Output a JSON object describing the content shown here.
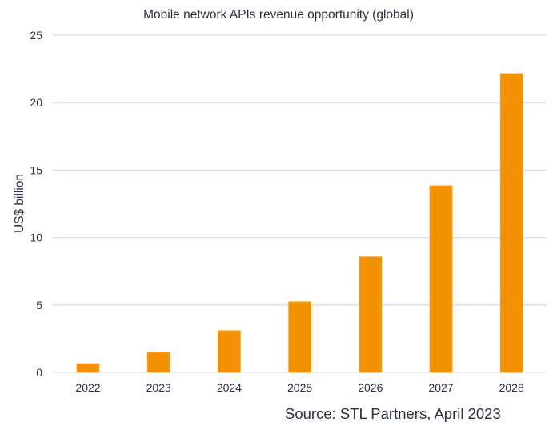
{
  "chart_data": {
    "type": "bar",
    "title": "Mobile network APIs revenue opportunity (global)",
    "xlabel": "",
    "ylabel": "US$ billion",
    "categories": [
      "2022",
      "2023",
      "2024",
      "2025",
      "2026",
      "2027",
      "2028"
    ],
    "values": [
      0.65,
      1.48,
      3.1,
      5.24,
      8.57,
      13.84,
      22.15
    ],
    "ylim": [
      0,
      25
    ],
    "yticks": [
      0,
      5,
      10,
      15,
      20,
      25
    ],
    "ytick_labels": [
      "0",
      "5",
      "10",
      "15",
      "20",
      "25"
    ],
    "grid": true,
    "legend": "none",
    "bar_color": "#F39200",
    "annotation": "Source: STL Partners, April 2023"
  }
}
